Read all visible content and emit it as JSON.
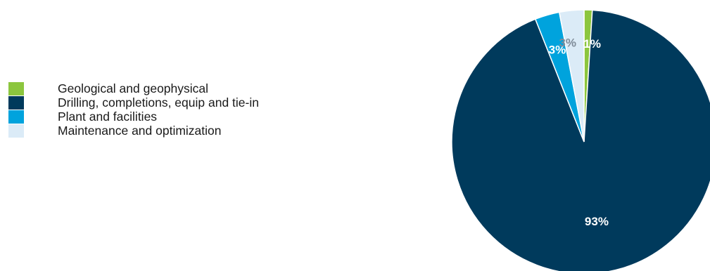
{
  "chart_data": {
    "type": "pie",
    "title": "",
    "start_angle_deg": 0,
    "direction": "clockwise",
    "legend_position": "left",
    "slices": [
      {
        "label": "Geological and geophysical",
        "value": 1,
        "display": "1%",
        "color": "#8CC63E",
        "label_color": "#ffffff"
      },
      {
        "label": "Drilling, completions, equip and tie-in",
        "value": 93,
        "display": "93%",
        "color": "#003A5C",
        "label_color": "#ffffff"
      },
      {
        "label": "Plant and facilities",
        "value": 3,
        "display": "3%",
        "color": "#00A3DD",
        "label_color": "#ffffff"
      },
      {
        "label": "Maintenance and optimization",
        "value": 3,
        "display": "3%",
        "color": "#DBEBF7",
        "label_color": "#7f8c99"
      }
    ]
  }
}
